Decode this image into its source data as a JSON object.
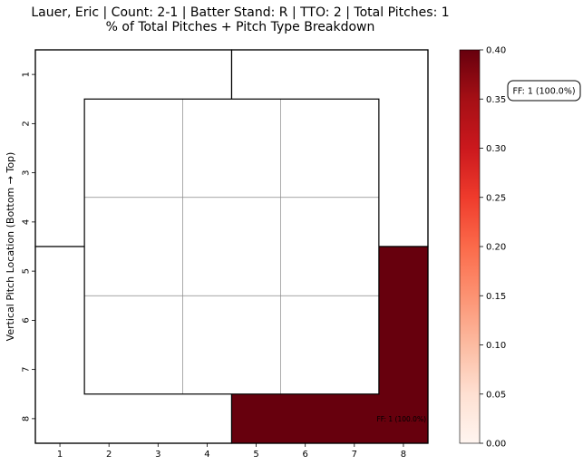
{
  "chart_data": {
    "type": "heatmap",
    "title_line1": "Lauer, Eric | Count: 2-1 | Batter Stand: R | TTO: 2 | Total Pitches: 1",
    "title_line2": "% of Total Pitches + Pitch Type Breakdown",
    "xlabel": "",
    "ylabel": "Vertical Pitch Location (Bottom → Top)",
    "x_ticks": [
      "1",
      "2",
      "3",
      "4",
      "5",
      "6",
      "7",
      "8"
    ],
    "y_ticks": [
      "1",
      "2",
      "3",
      "4",
      "5",
      "6",
      "7",
      "8"
    ],
    "grid": false,
    "zones": [
      {
        "id": "upper-left",
        "x_range": [
          0.5,
          4.5
        ],
        "y_range": [
          0.5,
          4.5
        ],
        "value": 0.0
      },
      {
        "id": "upper-right",
        "x_range": [
          4.5,
          8.5
        ],
        "y_range": [
          0.5,
          4.5
        ],
        "value": 0.0
      },
      {
        "id": "lower-left",
        "x_range": [
          0.5,
          4.5
        ],
        "y_range": [
          4.5,
          8.5
        ],
        "value": 0.0
      },
      {
        "id": "lower-right",
        "x_range": [
          4.5,
          8.5
        ],
        "y_range": [
          4.5,
          8.5
        ],
        "value": 1.0,
        "label": "FF: 1 (100.0%)"
      }
    ],
    "strike_zone": {
      "x_range": [
        1.5,
        7.5
      ],
      "y_range": [
        1.5,
        7.5
      ],
      "divisions": 3
    },
    "colorbar": {
      "min": 0.0,
      "max": 0.4,
      "ticks": [
        "0.00",
        "0.05",
        "0.10",
        "0.15",
        "0.20",
        "0.25",
        "0.30",
        "0.35",
        "0.40"
      ],
      "colormap": "Reds",
      "color_low": "#fff5f0",
      "color_high": "#67000d"
    },
    "annotation_box": "FF: 1 (100.0%)"
  }
}
